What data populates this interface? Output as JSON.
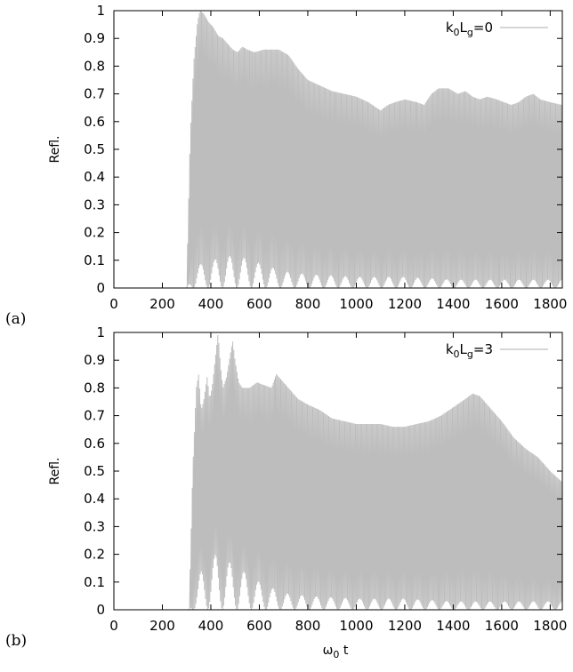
{
  "colors": {
    "series": "#bdbdbd",
    "axes": "#000000",
    "background": "#ffffff"
  },
  "chart_data": [
    {
      "type": "line",
      "panel_label": "(a)",
      "xlim": [
        0,
        1850
      ],
      "ylim": [
        0,
        1
      ],
      "x_ticks": [
        "0",
        "200",
        "400",
        "600",
        "800",
        "1000",
        "1200",
        "1400",
        "1600",
        "1800"
      ],
      "y_ticks": [
        "0",
        "0.1",
        "0.2",
        "0.3",
        "0.4",
        "0.5",
        "0.6",
        "0.7",
        "0.8",
        "0.9",
        "1"
      ],
      "ylabel": "Refl.",
      "xlabel": "",
      "legend": {
        "position": "top-right"
      },
      "series": [
        {
          "name_parts": {
            "k": "k",
            "k_sub": "0",
            "L": "L",
            "L_sub": "g",
            "rest": "=0"
          },
          "onset": 300,
          "upper_envelope": [
            [
              300,
              0.0
            ],
            [
              315,
              0.55
            ],
            [
              330,
              0.82
            ],
            [
              345,
              0.96
            ],
            [
              355,
              1.0
            ],
            [
              370,
              0.99
            ],
            [
              390,
              0.96
            ],
            [
              410,
              0.94
            ],
            [
              430,
              0.91
            ],
            [
              450,
              0.9
            ],
            [
              470,
              0.88
            ],
            [
              490,
              0.86
            ],
            [
              510,
              0.85
            ],
            [
              530,
              0.87
            ],
            [
              550,
              0.86
            ],
            [
              580,
              0.85
            ],
            [
              620,
              0.86
            ],
            [
              680,
              0.86
            ],
            [
              720,
              0.84
            ],
            [
              760,
              0.79
            ],
            [
              800,
              0.75
            ],
            [
              850,
              0.73
            ],
            [
              900,
              0.71
            ],
            [
              950,
              0.7
            ],
            [
              1000,
              0.69
            ],
            [
              1050,
              0.67
            ],
            [
              1100,
              0.64
            ],
            [
              1130,
              0.66
            ],
            [
              1160,
              0.67
            ],
            [
              1200,
              0.68
            ],
            [
              1250,
              0.67
            ],
            [
              1280,
              0.66
            ],
            [
              1310,
              0.7
            ],
            [
              1340,
              0.72
            ],
            [
              1380,
              0.72
            ],
            [
              1420,
              0.7
            ],
            [
              1450,
              0.71
            ],
            [
              1480,
              0.69
            ],
            [
              1510,
              0.68
            ],
            [
              1540,
              0.69
            ],
            [
              1580,
              0.68
            ],
            [
              1610,
              0.67
            ],
            [
              1640,
              0.66
            ],
            [
              1670,
              0.67
            ],
            [
              1700,
              0.69
            ],
            [
              1730,
              0.7
            ],
            [
              1760,
              0.68
            ],
            [
              1800,
              0.67
            ],
            [
              1850,
              0.66
            ]
          ],
          "lower_envelope": [
            [
              300,
              0.0
            ],
            [
              340,
              0.08
            ],
            [
              400,
              0.1
            ],
            [
              500,
              0.12
            ],
            [
              600,
              0.09
            ],
            [
              700,
              0.06
            ],
            [
              800,
              0.05
            ],
            [
              1000,
              0.04
            ],
            [
              1200,
              0.04
            ],
            [
              1400,
              0.03
            ],
            [
              1600,
              0.03
            ],
            [
              1850,
              0.03
            ]
          ]
        }
      ]
    },
    {
      "type": "line",
      "panel_label": "(b)",
      "xlim": [
        0,
        1850
      ],
      "ylim": [
        0,
        1
      ],
      "x_ticks": [
        "0",
        "200",
        "400",
        "600",
        "800",
        "1000",
        "1200",
        "1400",
        "1600",
        "1800"
      ],
      "y_ticks": [
        "0",
        "0.1",
        "0.2",
        "0.3",
        "0.4",
        "0.5",
        "0.6",
        "0.7",
        "0.8",
        "0.9",
        "1"
      ],
      "ylabel": "Refl.",
      "xlabel_parts": {
        "omega": "ω",
        "sub": "0",
        "rest": " t"
      },
      "legend": {
        "position": "top-right"
      },
      "series": [
        {
          "name_parts": {
            "k": "k",
            "k_sub": "0",
            "L": "L",
            "L_sub": "g",
            "rest": "=3"
          },
          "onset": 310,
          "upper_envelope": [
            [
              310,
              0.0
            ],
            [
              325,
              0.5
            ],
            [
              340,
              0.8
            ],
            [
              350,
              0.85
            ],
            [
              360,
              0.72
            ],
            [
              370,
              0.75
            ],
            [
              385,
              0.84
            ],
            [
              395,
              0.76
            ],
            [
              405,
              0.8
            ],
            [
              420,
              0.92
            ],
            [
              430,
              1.0
            ],
            [
              440,
              0.88
            ],
            [
              450,
              0.8
            ],
            [
              465,
              0.84
            ],
            [
              480,
              0.92
            ],
            [
              490,
              0.97
            ],
            [
              500,
              0.9
            ],
            [
              515,
              0.82
            ],
            [
              530,
              0.8
            ],
            [
              560,
              0.8
            ],
            [
              590,
              0.82
            ],
            [
              620,
              0.81
            ],
            [
              650,
              0.8
            ],
            [
              670,
              0.85
            ],
            [
              690,
              0.83
            ],
            [
              720,
              0.8
            ],
            [
              760,
              0.76
            ],
            [
              800,
              0.74
            ],
            [
              850,
              0.72
            ],
            [
              900,
              0.69
            ],
            [
              950,
              0.68
            ],
            [
              1000,
              0.67
            ],
            [
              1050,
              0.67
            ],
            [
              1100,
              0.67
            ],
            [
              1150,
              0.66
            ],
            [
              1200,
              0.66
            ],
            [
              1250,
              0.67
            ],
            [
              1300,
              0.68
            ],
            [
              1350,
              0.7
            ],
            [
              1400,
              0.73
            ],
            [
              1450,
              0.76
            ],
            [
              1480,
              0.78
            ],
            [
              1510,
              0.77
            ],
            [
              1550,
              0.73
            ],
            [
              1600,
              0.68
            ],
            [
              1650,
              0.62
            ],
            [
              1700,
              0.58
            ],
            [
              1750,
              0.55
            ],
            [
              1800,
              0.5
            ],
            [
              1850,
              0.46
            ]
          ],
          "lower_envelope": [
            [
              310,
              0.0
            ],
            [
              360,
              0.14
            ],
            [
              420,
              0.2
            ],
            [
              500,
              0.16
            ],
            [
              600,
              0.1
            ],
            [
              700,
              0.06
            ],
            [
              800,
              0.05
            ],
            [
              1000,
              0.04
            ],
            [
              1200,
              0.04
            ],
            [
              1400,
              0.03
            ],
            [
              1600,
              0.03
            ],
            [
              1850,
              0.03
            ]
          ]
        }
      ]
    }
  ]
}
